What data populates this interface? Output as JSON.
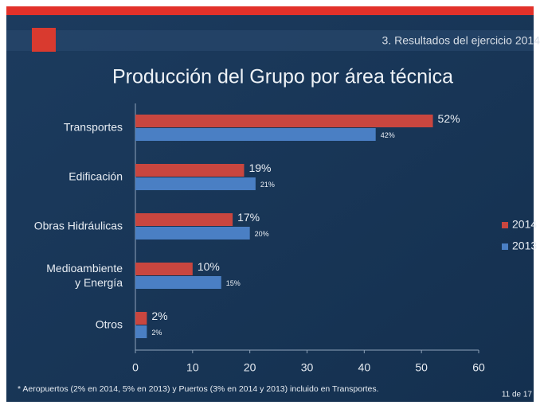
{
  "header": "3. Resultados del ejercicio 2014",
  "chart_data": {
    "type": "barh",
    "title": "Producción del Grupo por área técnica",
    "categories": [
      "Transportes",
      "Edificación",
      "Obras Hidráulicas",
      "Medioambiente\ny Energía",
      "Otros"
    ],
    "series": [
      {
        "name": "2014",
        "color": "#c9463f",
        "values": [
          52,
          19,
          17,
          10,
          2
        ],
        "value_labels": [
          "52%",
          "19%",
          "17%",
          "10%",
          "2%"
        ]
      },
      {
        "name": "2013",
        "color": "#4a7fc4",
        "values": [
          42,
          21,
          20,
          15,
          2
        ],
        "value_labels": [
          "42%",
          "21%",
          "20%",
          "15%",
          "2%"
        ]
      }
    ],
    "xlim": [
      0,
      60
    ],
    "xticks": [
      0,
      10,
      20,
      30,
      40,
      50,
      60
    ],
    "grid": false,
    "legend": "right"
  },
  "footnote": "*  Aeropuertos (2% en  2014, 5% en 2013) y Puertos (3% en 2014 y 2013) incluido en Transportes.",
  "page": "11 de 17"
}
